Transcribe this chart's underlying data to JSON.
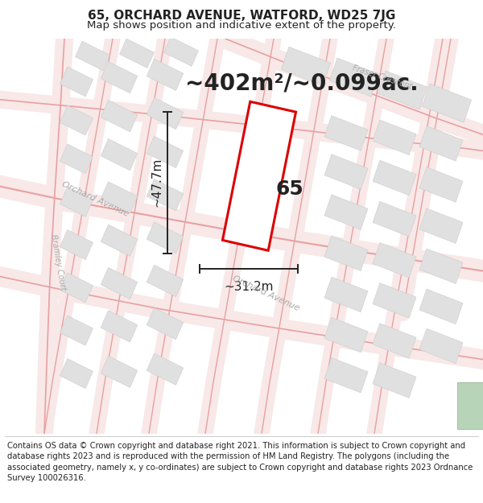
{
  "title_line1": "65, ORCHARD AVENUE, WATFORD, WD25 7JG",
  "title_line2": "Map shows position and indicative extent of the property.",
  "area_text": "~402m²/~0.099ac.",
  "dimension_h": "~47.7m",
  "dimension_w": "~31.2m",
  "plot_label": "65",
  "footer_text": "Contains OS data © Crown copyright and database right 2021. This information is subject to Crown copyright and database rights 2023 and is reproduced with the permission of HM Land Registry. The polygons (including the associated geometry, namely x, y co-ordinates) are subject to Crown copyright and database rights 2023 Ordnance Survey 100026316.",
  "map_bg": "#f5f5f5",
  "road_line_color": "#e8a0a0",
  "road_fill_color": "#f8e8e8",
  "plot_outline_color": "#dd0000",
  "plot_fill_color": "#ffffff",
  "block_fill_color": "#e0e0e0",
  "block_edge_color": "#cccccc",
  "green_color": "#b8d4b8",
  "dim_line_color": "#222222",
  "text_color": "#222222",
  "street_label_color": "#aaaaaa",
  "title_fontsize": 11,
  "subtitle_fontsize": 9.5,
  "area_fontsize": 20,
  "dim_fontsize": 11,
  "label_fontsize": 18,
  "footer_fontsize": 7.2,
  "street_fontsize": 8
}
